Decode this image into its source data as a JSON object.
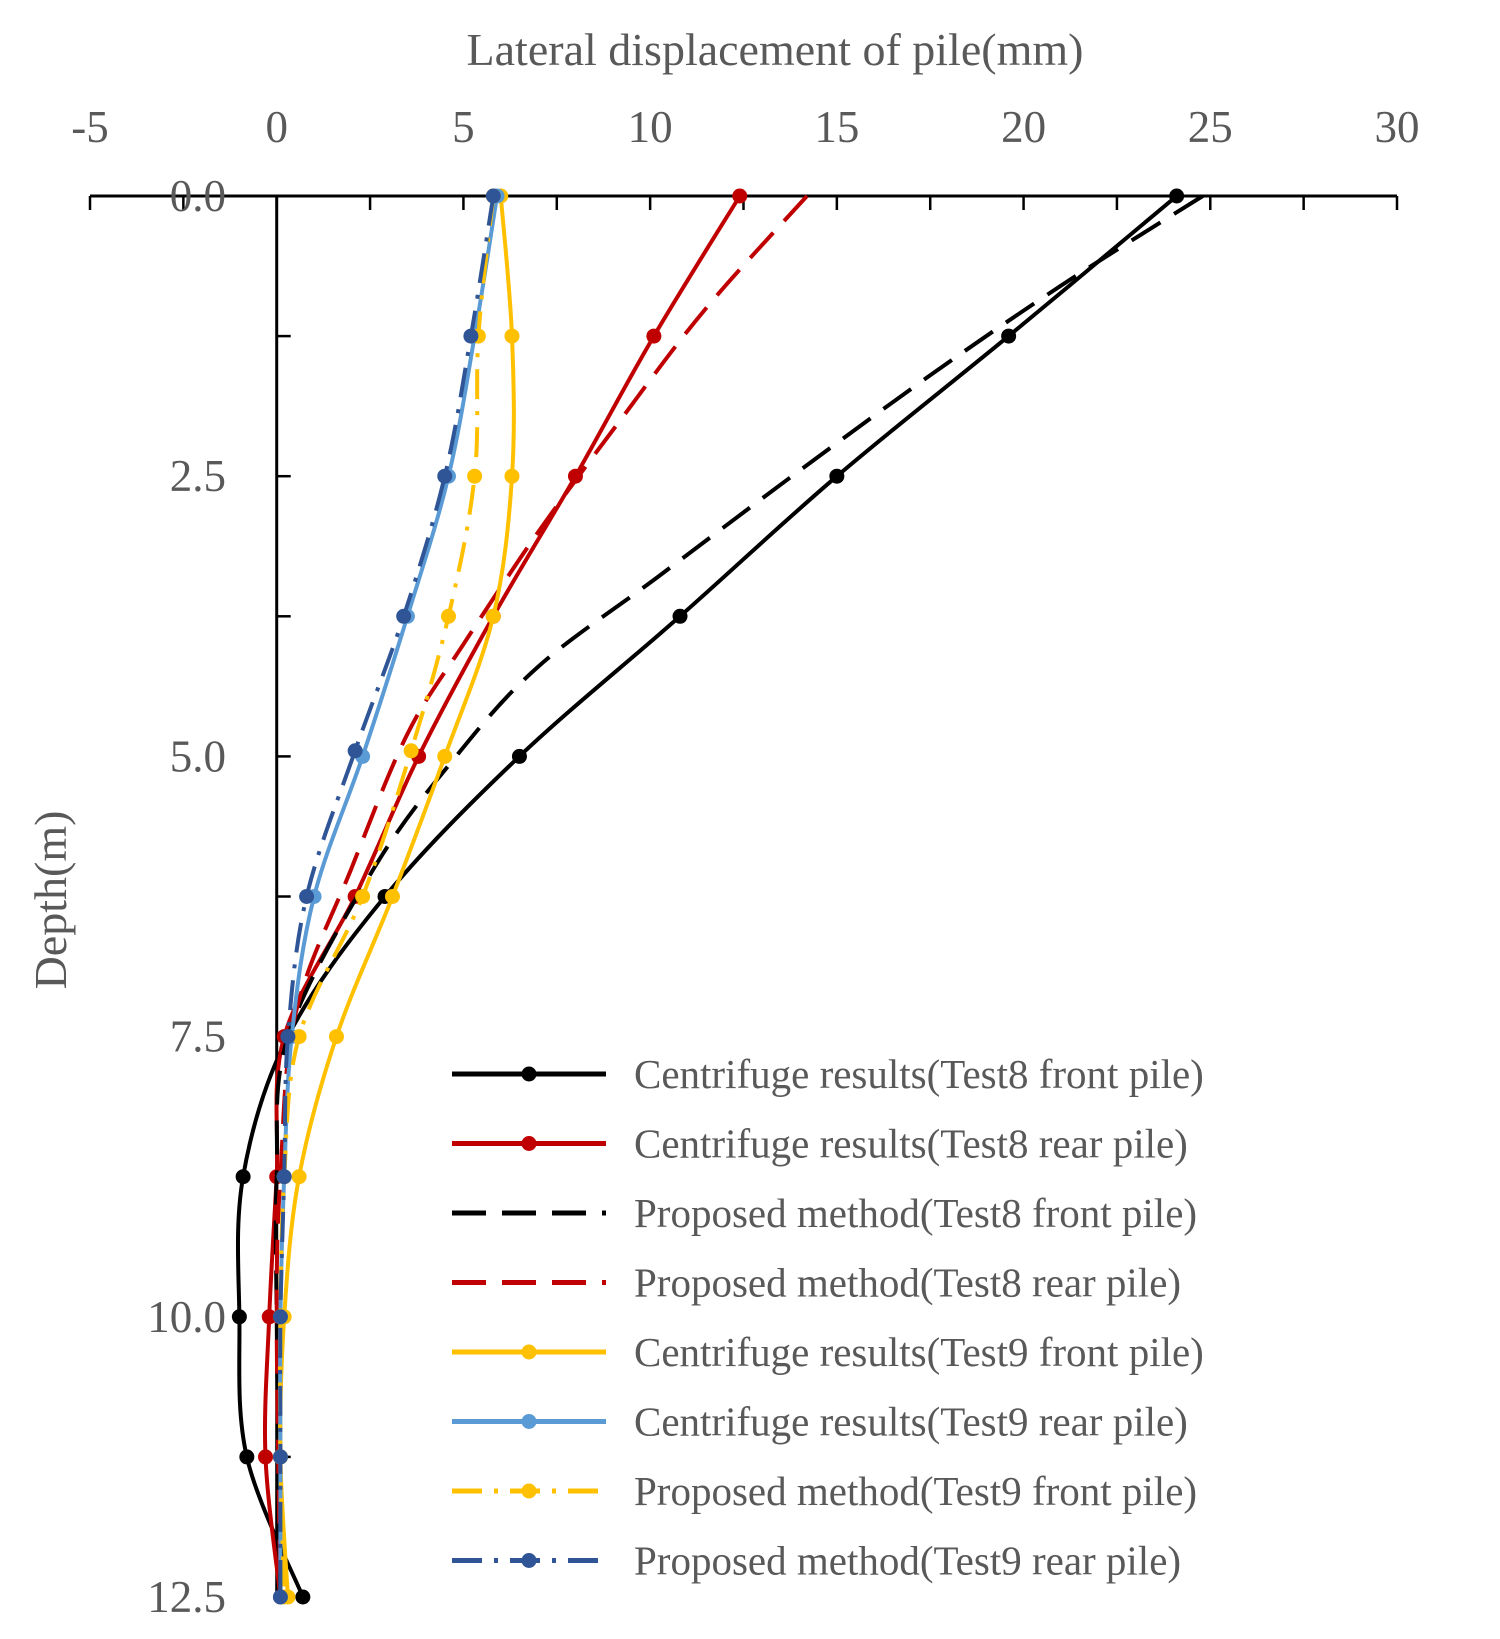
{
  "chart_data": {
    "type": "line",
    "title": "",
    "xlabel": "Lateral displacement of pile(mm)",
    "ylabel": "Depth(m)",
    "xlim": [
      -5,
      30
    ],
    "ylim": [
      0,
      12.5
    ],
    "x_axis_position": "top",
    "y_inverted": true,
    "x_ticks": [
      "-5",
      "0",
      "5",
      "10",
      "15",
      "20",
      "25",
      "30"
    ],
    "y_ticks": [
      "0.0",
      "2.5",
      "5.0",
      "7.5",
      "10.0",
      "12.5"
    ],
    "legend_position": "bottom-right",
    "series": [
      {
        "name": "Centrifuge results(Test8 front pile)",
        "color": "#000000",
        "dash": "solid",
        "marker": true,
        "x": [
          24.1,
          19.6,
          15.0,
          10.8,
          6.5,
          2.9,
          0.3,
          -0.9,
          -1.0,
          -0.8,
          0.7
        ],
        "y": [
          0.0,
          1.25,
          2.5,
          3.75,
          5.0,
          6.25,
          7.5,
          8.75,
          10.0,
          11.25,
          12.5
        ]
      },
      {
        "name": "Centrifuge results(Test8 rear pile)",
        "color": "#c00000",
        "dash": "solid",
        "marker": true,
        "x": [
          12.4,
          10.1,
          8.0,
          5.8,
          3.8,
          2.1,
          0.2,
          0.0,
          -0.2,
          -0.3,
          0.1
        ],
        "y": [
          0.0,
          1.25,
          2.5,
          3.75,
          5.0,
          6.25,
          7.5,
          8.75,
          10.0,
          11.25,
          12.5
        ]
      },
      {
        "name": "Proposed method(Test8 front pile)",
        "color": "#000000",
        "dash": "long",
        "marker": false,
        "x": [
          24.8,
          21.0,
          17.5,
          13.8,
          10.2,
          7.0,
          4.8,
          2.6,
          0.3,
          0.0,
          0.0,
          0.1
        ],
        "y": [
          0.0,
          0.8,
          1.6,
          2.5,
          3.4,
          4.2,
          5.0,
          6.0,
          7.5,
          8.75,
          10.0,
          12.5
        ]
      },
      {
        "name": "Proposed method(Test8 rear pile)",
        "color": "#c00000",
        "dash": "long",
        "marker": false,
        "x": [
          14.2,
          11.5,
          9.2,
          7.0,
          5.0,
          3.5,
          2.0,
          0.5,
          0.1,
          0.0,
          0.1
        ],
        "y": [
          0.0,
          1.0,
          2.0,
          3.0,
          4.0,
          4.8,
          6.0,
          7.3,
          8.75,
          10.0,
          12.5
        ]
      },
      {
        "name": "Centrifuge results(Test9 front pile)",
        "color": "#ffc000",
        "dash": "solid",
        "marker": true,
        "x": [
          6.0,
          6.3,
          6.3,
          5.8,
          4.5,
          3.1,
          1.6,
          0.6,
          0.2,
          0.1,
          0.3
        ],
        "y": [
          0.0,
          1.25,
          2.5,
          3.75,
          5.0,
          6.25,
          7.5,
          8.75,
          10.0,
          11.25,
          12.5
        ]
      },
      {
        "name": "Centrifuge results(Test9 rear pile)",
        "color": "#5b9bd5",
        "dash": "solid",
        "marker": true,
        "x": [
          5.9,
          5.3,
          4.6,
          3.5,
          2.3,
          1.0,
          0.4,
          0.2,
          0.1,
          0.1,
          0.1
        ],
        "y": [
          0.0,
          1.25,
          2.5,
          3.75,
          5.0,
          6.25,
          7.5,
          8.75,
          10.0,
          11.25,
          12.5
        ]
      },
      {
        "name": "Proposed method(Test9 front pile)",
        "color": "#ffc000",
        "dash": "dashdot",
        "marker": true,
        "x": [
          5.8,
          5.4,
          5.3,
          4.6,
          3.6,
          2.3,
          0.6,
          0.2,
          0.1,
          0.1,
          0.2
        ],
        "y": [
          0.0,
          1.25,
          2.5,
          3.75,
          4.95,
          6.25,
          7.5,
          8.75,
          10.0,
          11.25,
          12.5
        ]
      },
      {
        "name": "Proposed method(Test9 rear pile)",
        "color": "#2f5597",
        "dash": "dashdot",
        "marker": true,
        "x": [
          5.8,
          5.2,
          4.5,
          3.4,
          2.1,
          0.8,
          0.3,
          0.2,
          0.1,
          0.1,
          0.1
        ],
        "y": [
          0.0,
          1.25,
          2.5,
          3.75,
          4.95,
          6.25,
          7.5,
          8.75,
          10.0,
          11.25,
          12.5
        ]
      }
    ]
  }
}
